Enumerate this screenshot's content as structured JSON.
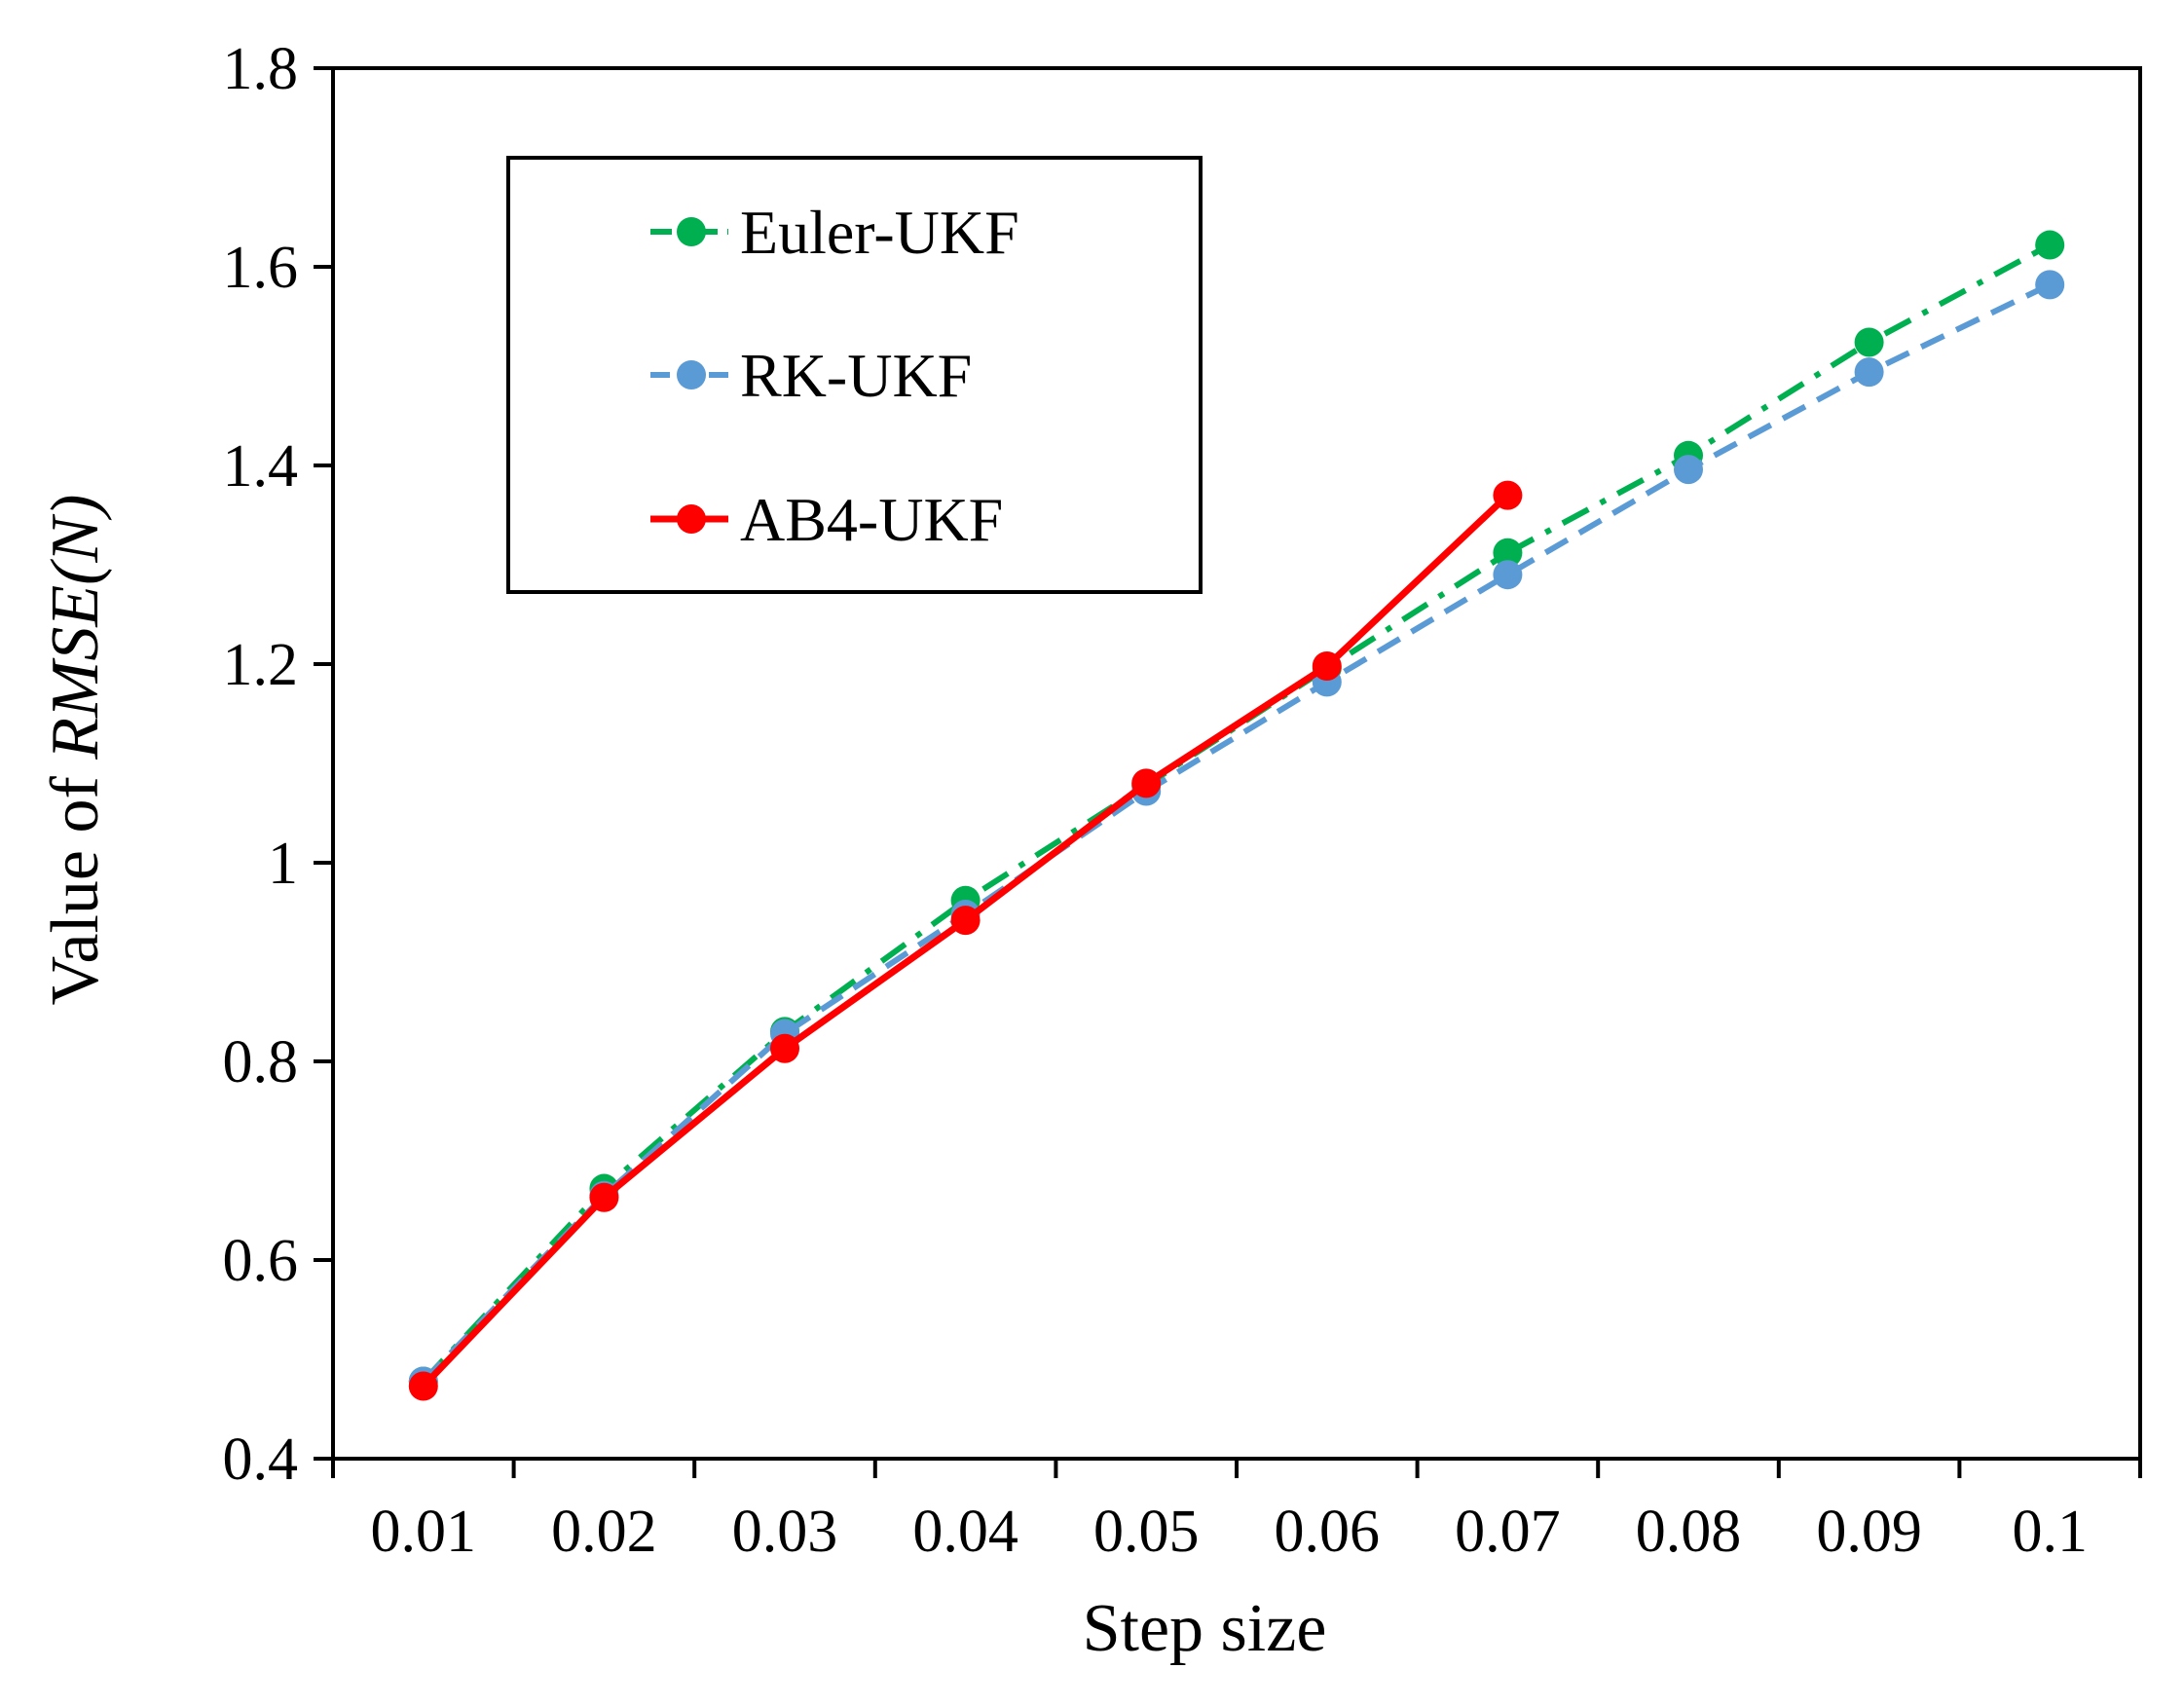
{
  "chart_data": {
    "type": "line",
    "title": "",
    "xlabel": "Step size",
    "ylabel": "Value of ",
    "ylabel_italic": "RMSE(N)",
    "x": [
      0.01,
      0.02,
      0.03,
      0.04,
      0.05,
      0.06,
      0.07,
      0.08,
      0.09,
      0.1
    ],
    "x_tick_labels": [
      "0.01",
      "0.02",
      "0.03",
      "0.04",
      "0.05",
      "0.06",
      "0.07",
      "0.08",
      "0.09",
      "0.1"
    ],
    "ylim": [
      0.4,
      1.8
    ],
    "y_ticks": [
      0.4,
      0.6,
      0.8,
      1.0,
      1.2,
      1.4,
      1.6,
      1.8
    ],
    "y_tick_labels": [
      "0.4",
      "0.6",
      "0.8",
      "1",
      "1.2",
      "1.4",
      "1.6",
      "1.8"
    ],
    "grid": false,
    "legend_position": "top-left",
    "series": [
      {
        "name": "Euler-UKF",
        "color": "#00b050",
        "dash": "dash-dot",
        "values": [
          0.478,
          0.672,
          0.83,
          0.962,
          1.078,
          1.196,
          1.312,
          1.41,
          1.524,
          1.622
        ]
      },
      {
        "name": "RK-UKF",
        "color": "#5b9bd5",
        "dash": "dash",
        "values": [
          0.478,
          0.665,
          0.828,
          0.948,
          1.072,
          1.182,
          1.29,
          1.396,
          1.494,
          1.582
        ]
      },
      {
        "name": "AB4-UKF",
        "color": "#ff0000",
        "dash": "solid",
        "values": [
          0.473,
          0.663,
          0.813,
          0.942,
          1.08,
          1.198,
          1.37,
          null,
          null,
          null
        ]
      }
    ]
  }
}
